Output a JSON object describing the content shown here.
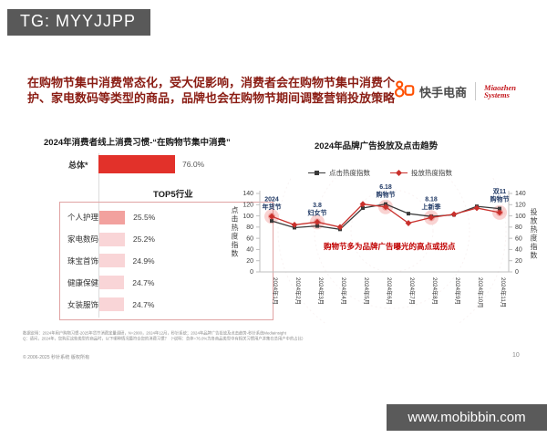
{
  "watermarks": {
    "tg_badge": "TG: MYYJJPP",
    "site_badge": "www.mobibbin.com"
  },
  "header": {
    "headline": "在购物节集中消费常态化，受大促影响，消费者会在购物节集中消费个护、家电数码等类型的商品，品牌也会在购物节期间调整营销投放策略",
    "brand": {
      "kuaishou_label": "快手电商",
      "miaozhen_line1": "Miaozhen",
      "miaozhen_line2": "Systems"
    }
  },
  "chart_data": [
    {
      "type": "bar",
      "title": "2024年消费者线上消费习惯-“在购物节集中消费”",
      "total": {
        "label": "总体*",
        "value": 76.0,
        "display": "76.0%"
      },
      "group_label": "TOP5行业",
      "categories": [
        "个人护理",
        "家电数码",
        "珠宝首饰",
        "健康保健",
        "女装服饰"
      ],
      "values": [
        25.5,
        25.2,
        24.9,
        24.7,
        24.7
      ],
      "value_labels": [
        "25.5%",
        "25.2%",
        "24.9%",
        "24.7%",
        "24.7%"
      ],
      "xlim": [
        0,
        100
      ],
      "bar_colors": {
        "total": "#e2312a",
        "top_row": "#f2a19e",
        "other_rows": "#f9d5d7"
      }
    },
    {
      "type": "line",
      "title": "2024年品牌广告投放及点击趋势",
      "categories": [
        "2024年1月",
        "2024年2月",
        "2024年3月",
        "2024年4月",
        "2024年5月",
        "2024年6月",
        "2024年7月",
        "2024年8月",
        "2024年9月",
        "2024年10月",
        "2024年11月"
      ],
      "series": [
        {
          "name": "点击热度指数",
          "color": "#3a3a3a",
          "marker": "square",
          "values": [
            91,
            79,
            82,
            76,
            114,
            121,
            104,
            99,
            102,
            117,
            113
          ]
        },
        {
          "name": "投放热度指数",
          "color": "#c9302c",
          "marker": "diamond",
          "values": [
            99,
            84,
            89,
            80,
            121,
            116,
            87,
            97,
            103,
            114,
            106
          ]
        }
      ],
      "ylim": [
        0,
        140
      ],
      "yticks": [
        0,
        20,
        40,
        60,
        80,
        100,
        120,
        140
      ],
      "ylabel_left": "点击热度指数",
      "ylabel_right": "投放热度指数",
      "annotations": [
        {
          "index": 0,
          "lines": [
            "2024",
            "年货节"
          ]
        },
        {
          "index": 2,
          "lines": [
            "3.8",
            "妇女节"
          ]
        },
        {
          "index": 5,
          "lines": [
            "6.18",
            "购物节"
          ]
        },
        {
          "index": 7,
          "lines": [
            "8.18",
            "上新季"
          ]
        },
        {
          "index": 10,
          "lines": [
            "双11",
            "购物节"
          ]
        }
      ],
      "note": "购物节多为品牌广告曝光的高点或拐点",
      "highlight_color": "#e8615c",
      "annotation_color": "#1f3864",
      "grid": false,
      "legend_position": "top"
    }
  ],
  "footer": {
    "note_line1": "数据说明：2024年用户购物习惯-2025年货节消费定量调研，N=2000，2024年12月，秒针系统；2024年品牌广告投放及点击趋势-秒针系统MediaInsight",
    "note_line2": "Q：请问，2024年，您购买这些类型的商品时，以下哪种情况最符合您的消费习惯？（*说明：总体=76.0%为各商品类型中有相关习惯用户并集在总用户中的占比）",
    "copyright": "© 2006-2025 秒针系统 版权所有",
    "page_number": "10"
  }
}
